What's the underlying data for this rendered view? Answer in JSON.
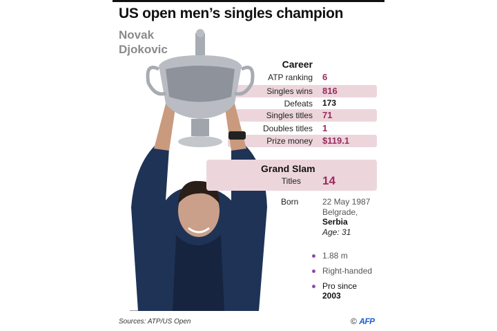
{
  "title": "US open men’s singles champion",
  "name": "Novak Djokovic",
  "career": {
    "heading": "Career",
    "rows": [
      {
        "label": "ATP ranking",
        "value": "6",
        "highlight": false
      },
      {
        "label": "Singles wins",
        "value": "816",
        "highlight": true
      },
      {
        "label": "Defeats",
        "value": "173",
        "highlight": false
      },
      {
        "label": "Singles titles",
        "value": "71",
        "highlight": true
      },
      {
        "label": "Doubles titles",
        "value": "1",
        "highlight": false
      },
      {
        "label": "Prize money",
        "value": "$119.1",
        "highlight": true
      }
    ]
  },
  "grand_slam": {
    "heading": "Grand Slam",
    "label": "Titles",
    "value": "14"
  },
  "born": {
    "label": "Born",
    "date": "22 May 1987",
    "city": "Belgrade,",
    "country": "Serbia",
    "age": "Age: 31"
  },
  "facts": [
    "1.88 m",
    "Right-handed"
  ],
  "pro": {
    "text": "Pro since",
    "year": "2003"
  },
  "sources": "Sources: ATP/US Open",
  "credit": {
    "copyright": "©",
    "logo": "AFP"
  },
  "colors": {
    "accent": "#9c2a5e",
    "band": "#ecd6dc",
    "bullet": "#8a4fa8",
    "name": "#8a8a8a"
  }
}
